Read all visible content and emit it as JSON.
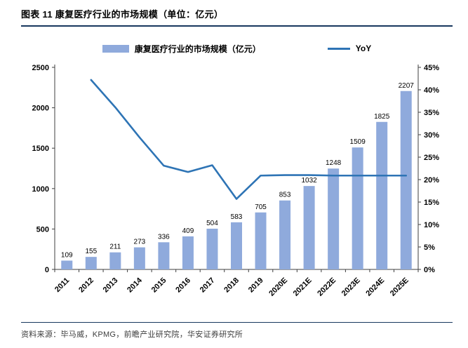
{
  "header": {
    "title": "图表 11 康复医疗行业的市场规模（单位：亿元）"
  },
  "footer": {
    "source": "资料来源：毕马威，KPMG，前瞻产业研究院，华安证券研究所"
  },
  "chart_data": {
    "type": "bar",
    "title": "康复医疗行业的市场规模",
    "categories": [
      "2011",
      "2012",
      "2013",
      "2014",
      "2015",
      "2016",
      "2017",
      "2018",
      "2019",
      "2020E",
      "2021E",
      "2022E",
      "2023E",
      "2024E",
      "2025E"
    ],
    "series": [
      {
        "name": "康复医疗行业的市场规模（亿元）",
        "type": "bar",
        "axis": "left",
        "color": "#8FAADC",
        "values": [
          109,
          155,
          211,
          273,
          336,
          409,
          504,
          583,
          705,
          853,
          1032,
          1248,
          1509,
          1825,
          2207
        ]
      },
      {
        "name": "YoY",
        "type": "line",
        "axis": "right",
        "color": "#2E74B5",
        "values": [
          null,
          42.2,
          36.1,
          29.4,
          23.1,
          21.7,
          23.2,
          15.7,
          20.9,
          21.0,
          21.0,
          20.9,
          20.9,
          20.9,
          20.9
        ]
      }
    ],
    "left_axis": {
      "min": 0,
      "max": 2500,
      "step": 500
    },
    "right_axis": {
      "min": 0,
      "max": 45,
      "step": 5,
      "suffix": "%"
    },
    "grid": false,
    "legend_position": "top"
  }
}
